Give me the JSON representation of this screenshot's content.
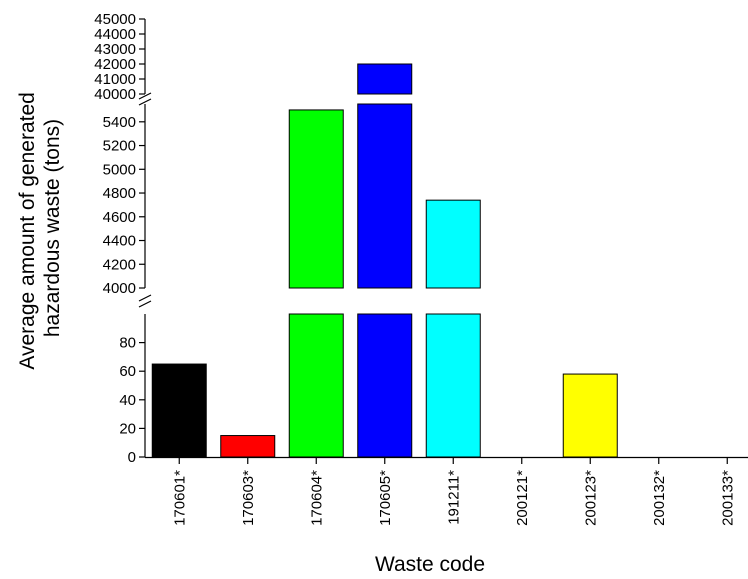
{
  "chart_data": {
    "type": "bar",
    "title": "",
    "xlabel": "Waste code",
    "ylabel": "Average amount of generated hazardous waste (tons)",
    "ylabel_lines": [
      "Average amount of generated",
      "hazardous waste (tons)"
    ],
    "categories": [
      "170601*",
      "170603*",
      "170604*",
      "170605*",
      "191211*",
      "200121*",
      "200123*",
      "200132*",
      "200133*"
    ],
    "values": [
      65,
      15,
      5500,
      42000,
      4740,
      0,
      58,
      0,
      0
    ],
    "bar_colors": [
      "#000000",
      "#ff0000",
      "#00ff00",
      "#0000ff",
      "#00ffff",
      "#ffffff",
      "#ffff00",
      "#ffffff",
      "#ffffff"
    ],
    "axis_break": true,
    "y_segments": [
      {
        "ylim": [
          0,
          100
        ],
        "ticks": [
          0,
          20,
          40,
          60,
          80
        ],
        "tick_labels": [
          "0",
          "20",
          "40",
          "60",
          "80"
        ]
      },
      {
        "ylim": [
          4000,
          5550
        ],
        "ticks": [
          4000,
          4200,
          4400,
          4600,
          4800,
          5000,
          5200,
          5400
        ],
        "tick_labels": [
          "4000",
          "4200",
          "4400",
          "4600",
          "4800",
          "5000",
          "5200",
          "5400"
        ]
      },
      {
        "ylim": [
          40000,
          45000
        ],
        "ticks": [
          40000,
          41000,
          42000,
          43000,
          44000,
          45000
        ],
        "tick_labels": [
          "40000",
          "41000",
          "42000",
          "43000",
          "44000",
          "45000"
        ]
      }
    ],
    "grid": false,
    "legend": "none"
  }
}
